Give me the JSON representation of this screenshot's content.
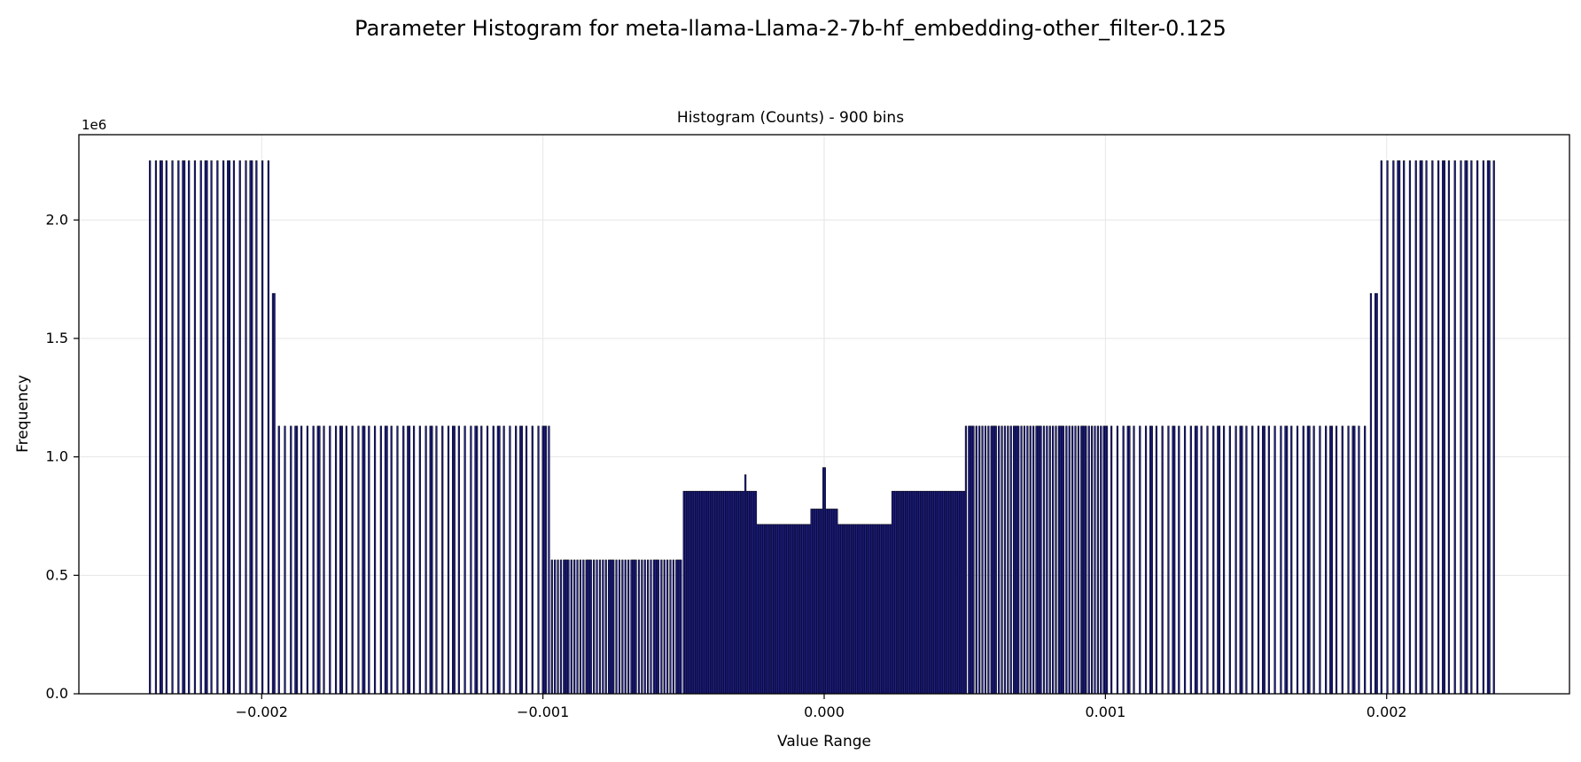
{
  "suptitle": "Parameter Histogram for meta-llama-Llama-2-7b-hf_embedding-other_filter-0.125",
  "chart_data": {
    "type": "bar",
    "title": "Histogram (Counts) - 900 bins",
    "xlabel": "Value Range",
    "ylabel": "Frequency",
    "y_offset_label": "1e6",
    "xlim": [
      -0.00265,
      0.00265
    ],
    "ylim": [
      0,
      2360000
    ],
    "xticks": [
      -0.002,
      -0.001,
      0.0,
      0.001,
      0.002
    ],
    "xtick_labels": [
      "−0.002",
      "−0.001",
      "0.000",
      "0.001",
      "0.002"
    ],
    "yticks": [
      0,
      500000,
      1000000,
      1500000,
      2000000
    ],
    "ytick_labels": [
      "0.0",
      "0.5",
      "1.0",
      "1.5",
      "2.0"
    ],
    "grid": true,
    "bins": 900,
    "bin_range": [
      -0.0024,
      0.0024
    ],
    "occupied_bin_spacing": [
      {
        "from": -0.0024,
        "to": -0.001,
        "spacing": 2e-05
      },
      {
        "from": -0.001,
        "to": -0.0005,
        "spacing": 1e-05
      },
      {
        "from": -0.0005,
        "to": 0.0005,
        "spacing": 5e-06
      },
      {
        "from": 0.0005,
        "to": 0.001,
        "spacing": 1e-05
      },
      {
        "from": 0.001,
        "to": 0.0024,
        "spacing": 2e-05
      }
    ],
    "frequency_levels": [
      {
        "from": -0.0024,
        "to": -0.00197,
        "value": 2250000
      },
      {
        "from": -0.00197,
        "to": -0.00194,
        "value": 1690000
      },
      {
        "from": -0.00194,
        "to": -0.0005,
        "value": 1130000
      },
      {
        "from": -0.00097,
        "to": -0.0005,
        "value": 565000
      },
      {
        "from": -0.0005,
        "to": -0.00024,
        "value": 855000
      },
      {
        "from": -0.00024,
        "to": -5e-05,
        "value": 715000
      },
      {
        "from": -5e-05,
        "to": 5e-05,
        "value": 780000
      },
      {
        "from": 5e-05,
        "to": 0.00024,
        "value": 715000
      },
      {
        "from": 0.00024,
        "to": 0.0005,
        "value": 855000
      },
      {
        "from": 0.0005,
        "to": 0.00097,
        "value": 565000
      },
      {
        "from": 0.0005,
        "to": 0.00194,
        "value": 1130000
      },
      {
        "from": 0.00194,
        "to": 0.00197,
        "value": 1690000
      },
      {
        "from": 0.00197,
        "to": 0.0024,
        "value": 2250000
      }
    ],
    "peaks": [
      {
        "x": -0.00028,
        "value": 925000
      },
      {
        "x": 0.0,
        "value": 955000
      }
    ],
    "colors": {
      "bar_fill": "#1f1f8f",
      "bar_edge": "#000000",
      "grid": "#e6e6e6"
    }
  }
}
